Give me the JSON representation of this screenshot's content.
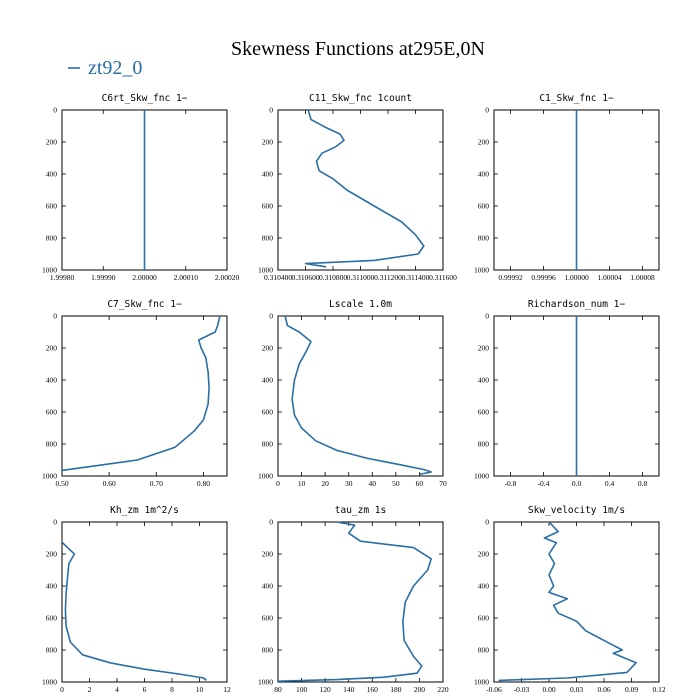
{
  "figure": {
    "title": "Skewness Functions at295E,0N",
    "legend_label": "zt92_0",
    "series_color": "#2a6ea6"
  },
  "chart_data": [
    {
      "type": "line",
      "title": "C6rt_Skw_fnc   1−",
      "xlim": [
        1.9998,
        2.0002
      ],
      "ylim": [
        0,
        1000
      ],
      "y_inverted": true,
      "xticks": [
        {
          "v": 1.9998,
          "t": "1.99980"
        },
        {
          "v": 1.9999,
          "t": "1.99990"
        },
        {
          "v": 2.0,
          "t": "2.00000"
        },
        {
          "v": 2.0001,
          "t": "2.00010"
        },
        {
          "v": 2.0002,
          "t": "2.00020"
        }
      ],
      "yticks": [
        0,
        200,
        400,
        600,
        800,
        1000
      ],
      "x": [
        2.0,
        2.0
      ],
      "y": [
        0,
        1000
      ]
    },
    {
      "type": "line",
      "title": "C11_Skw_fnc   1count",
      "xlim": [
        0.3104,
        0.3116
      ],
      "ylim": [
        0,
        1000
      ],
      "y_inverted": true,
      "xticks": [
        {
          "v": 0.3104,
          "t": "0.310400"
        },
        {
          "v": 0.3106,
          "t": "0.310600"
        },
        {
          "v": 0.3108,
          "t": "0.310800"
        },
        {
          "v": 0.311,
          "t": "0.311000"
        },
        {
          "v": 0.3112,
          "t": "0.311200"
        },
        {
          "v": 0.3114,
          "t": "0.311400"
        },
        {
          "v": 0.3116,
          "t": "0.311600"
        }
      ],
      "yticks": [
        0,
        200,
        400,
        600,
        800,
        1000
      ],
      "x": [
        0.31062,
        0.31064,
        0.31075,
        0.31085,
        0.31088,
        0.31082,
        0.31072,
        0.31068,
        0.3107,
        0.3108,
        0.3109,
        0.3111,
        0.3113,
        0.3114,
        0.31146,
        0.31142,
        0.3111,
        0.3106,
        0.31075
      ],
      "y": [
        0,
        60,
        110,
        150,
        190,
        230,
        270,
        320,
        380,
        430,
        500,
        600,
        700,
        780,
        850,
        900,
        940,
        960,
        980
      ]
    },
    {
      "type": "line",
      "title": "C1_Skw_fnc   1−",
      "xlim": [
        0.9999,
        1.0001
      ],
      "ylim": [
        0,
        1000
      ],
      "y_inverted": true,
      "xticks": [
        {
          "v": 0.99992,
          "t": "0.99992"
        },
        {
          "v": 0.99996,
          "t": "0.99996"
        },
        {
          "v": 1.0,
          "t": "1.00000"
        },
        {
          "v": 1.00004,
          "t": "1.00004"
        },
        {
          "v": 1.00008,
          "t": "1.00008"
        }
      ],
      "yticks": [
        0,
        200,
        400,
        600,
        800,
        1000
      ],
      "x": [
        1.0,
        1.0
      ],
      "y": [
        0,
        1000
      ]
    },
    {
      "type": "line",
      "title": "C7_Skw_fnc   1−",
      "xlim": [
        0.5,
        0.85
      ],
      "ylim": [
        0,
        1000
      ],
      "y_inverted": true,
      "xticks": [
        {
          "v": 0.5,
          "t": "0.50"
        },
        {
          "v": 0.6,
          "t": "0.60"
        },
        {
          "v": 0.7,
          "t": "0.70"
        },
        {
          "v": 0.8,
          "t": "0.80"
        }
      ],
      "yticks": [
        0,
        200,
        400,
        600,
        800,
        1000
      ],
      "x": [
        0.835,
        0.83,
        0.825,
        0.79,
        0.795,
        0.805,
        0.81,
        0.812,
        0.81,
        0.8,
        0.78,
        0.76,
        0.74,
        0.66,
        0.5
      ],
      "y": [
        0,
        60,
        100,
        150,
        200,
        260,
        350,
        450,
        550,
        650,
        720,
        770,
        820,
        900,
        965
      ]
    },
    {
      "type": "line",
      "title": "Lscale   1.0m",
      "xlim": [
        0,
        70
      ],
      "ylim": [
        0,
        1000
      ],
      "y_inverted": true,
      "xticks": [
        {
          "v": 0,
          "t": "0"
        },
        {
          "v": 10,
          "t": "10"
        },
        {
          "v": 20,
          "t": "20"
        },
        {
          "v": 30,
          "t": "30"
        },
        {
          "v": 40,
          "t": "40"
        },
        {
          "v": 50,
          "t": "50"
        },
        {
          "v": 60,
          "t": "60"
        },
        {
          "v": 70,
          "t": "70"
        }
      ],
      "yticks": [
        0,
        200,
        400,
        600,
        800,
        1000
      ],
      "x": [
        3,
        4,
        9,
        14,
        12,
        9,
        7,
        6,
        7,
        10,
        16,
        25,
        38,
        52,
        62,
        65,
        60
      ],
      "y": [
        0,
        60,
        100,
        160,
        220,
        300,
        400,
        520,
        620,
        700,
        780,
        840,
        890,
        930,
        960,
        975,
        990
      ]
    },
    {
      "type": "line",
      "title": "Richardson_num   1−",
      "xlim": [
        -1,
        1
      ],
      "ylim": [
        0,
        1000
      ],
      "y_inverted": true,
      "xticks": [
        {
          "v": -0.8,
          "t": "-0.8"
        },
        {
          "v": -0.4,
          "t": "-0.4"
        },
        {
          "v": 0,
          "t": "0.0"
        },
        {
          "v": 0.4,
          "t": "0.4"
        },
        {
          "v": 0.8,
          "t": "0.8"
        }
      ],
      "yticks": [
        0,
        200,
        400,
        600,
        800,
        1000
      ],
      "x": [
        0,
        0
      ],
      "y": [
        0,
        1000
      ]
    },
    {
      "type": "line",
      "title": "Kh_zm   1m^2/s",
      "xlim": [
        0,
        12
      ],
      "ylim": [
        0,
        1000
      ],
      "y_inverted": true,
      "xticks": [
        {
          "v": 0,
          "t": "0"
        },
        {
          "v": 2,
          "t": "2"
        },
        {
          "v": 4,
          "t": "4"
        },
        {
          "v": 6,
          "t": "6"
        },
        {
          "v": 8,
          "t": "8"
        },
        {
          "v": 10,
          "t": "10"
        },
        {
          "v": 12,
          "t": "12"
        }
      ],
      "yticks": [
        0,
        200,
        400,
        600,
        800,
        1000
      ],
      "x": [
        0.05,
        0.4,
        0.9,
        0.5,
        0.4,
        0.3,
        0.25,
        0.3,
        0.6,
        1.5,
        3.5,
        6,
        8.5,
        10.3,
        10.5
      ],
      "y": [
        130,
        160,
        200,
        260,
        350,
        450,
        550,
        650,
        750,
        830,
        880,
        920,
        950,
        975,
        990
      ]
    },
    {
      "type": "line",
      "title": "tau_zm   1s",
      "xlim": [
        80,
        220
      ],
      "ylim": [
        0,
        1000
      ],
      "y_inverted": true,
      "xticks": [
        {
          "v": 80,
          "t": "80"
        },
        {
          "v": 100,
          "t": "100"
        },
        {
          "v": 120,
          "t": "120"
        },
        {
          "v": 140,
          "t": "140"
        },
        {
          "v": 160,
          "t": "160"
        },
        {
          "v": 180,
          "t": "180"
        },
        {
          "v": 200,
          "t": "200"
        },
        {
          "v": 220,
          "t": "220"
        }
      ],
      "yticks": [
        0,
        200,
        400,
        600,
        800,
        1000
      ],
      "x": [
        130,
        145,
        140,
        150,
        195,
        210,
        207,
        195,
        188,
        186,
        187,
        195,
        202,
        198,
        170,
        130,
        80
      ],
      "y": [
        0,
        20,
        70,
        120,
        160,
        230,
        300,
        400,
        500,
        620,
        740,
        840,
        900,
        945,
        970,
        985,
        995
      ]
    },
    {
      "type": "line",
      "title": "Skw_velocity   1m/s",
      "xlim": [
        -0.06,
        0.12
      ],
      "ylim": [
        0,
        1000
      ],
      "y_inverted": true,
      "xticks": [
        {
          "v": -0.06,
          "t": "-0.06"
        },
        {
          "v": -0.03,
          "t": "-0.03"
        },
        {
          "v": 0,
          "t": "0.00"
        },
        {
          "v": 0.03,
          "t": "0.03"
        },
        {
          "v": 0.06,
          "t": "0.06"
        },
        {
          "v": 0.09,
          "t": "0.09"
        },
        {
          "v": 0.12,
          "t": "0.12"
        }
      ],
      "yticks": [
        0,
        200,
        400,
        600,
        800,
        1000
      ],
      "x": [
        0.0,
        0.01,
        -0.005,
        0.008,
        0.0,
        0.006,
        0.0,
        0.005,
        0.0,
        0.02,
        0.005,
        0.01,
        0.03,
        0.04,
        0.06,
        0.08,
        0.07,
        0.095,
        0.085,
        0.02,
        -0.055
      ],
      "y": [
        0,
        60,
        100,
        130,
        200,
        260,
        330,
        400,
        440,
        480,
        520,
        570,
        620,
        680,
        740,
        800,
        820,
        880,
        940,
        975,
        990
      ]
    }
  ]
}
